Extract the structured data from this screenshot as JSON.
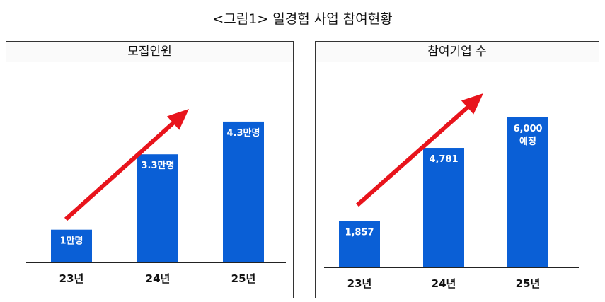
{
  "figure_title": "<그림1> 일경험 사업 참여현황",
  "colors": {
    "bar": "#0a5fd6",
    "arrow": "#e8141c",
    "baseline": "#222222"
  },
  "chart_data": [
    {
      "type": "bar",
      "title": "모집인원",
      "categories": [
        "23년",
        "24년",
        "25년"
      ],
      "values": [
        1,
        3.3,
        4.3
      ],
      "unit": "만명",
      "data_labels": [
        [
          "1만명"
        ],
        [
          "3.3만명"
        ],
        [
          "4.3만명"
        ]
      ],
      "ylim": [
        0,
        5.4
      ],
      "grid": false,
      "trend_arrow": true
    },
    {
      "type": "bar",
      "title": "참여기업 수",
      "categories": [
        "23년",
        "24년",
        "25년"
      ],
      "values": [
        1857,
        4781,
        6000
      ],
      "data_labels": [
        [
          "1,857"
        ],
        [
          "4,781"
        ],
        [
          "6,000",
          "예정"
        ]
      ],
      "ylim": [
        0,
        7300
      ],
      "grid": false,
      "trend_arrow": true
    }
  ]
}
